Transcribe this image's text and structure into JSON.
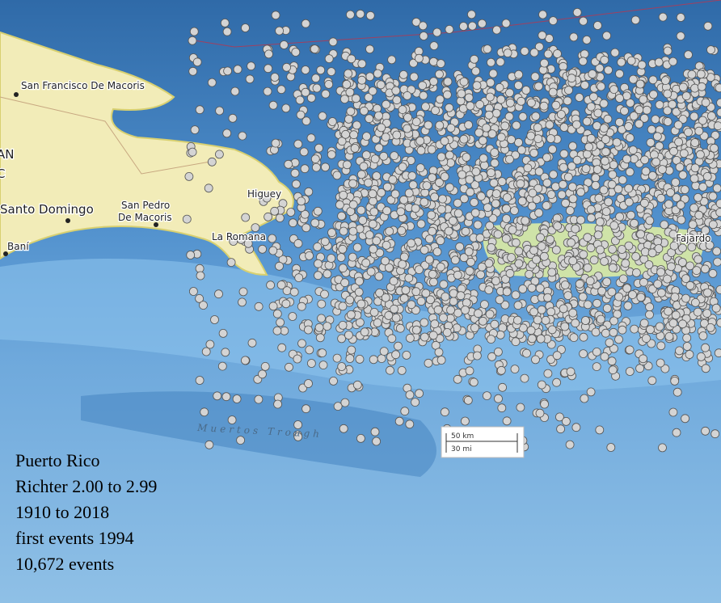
{
  "map": {
    "places": [
      "San Francisco De Macoris",
      "Santo Domingo",
      "San Pedro",
      "De Macoris",
      "Baní",
      "Higuey",
      "La Romana",
      "Fajardo",
      "AN",
      "C"
    ],
    "features": {
      "trough": "Muertos Trough"
    },
    "scale_bar": {
      "km": "50 km",
      "mi": "30 mi"
    },
    "info": {
      "lines": [
        "Puerto Rico",
        "Richter 2.00 to 2.99",
        "1910 to 2018",
        "first events 1994",
        "10,672 events"
      ]
    }
  }
}
